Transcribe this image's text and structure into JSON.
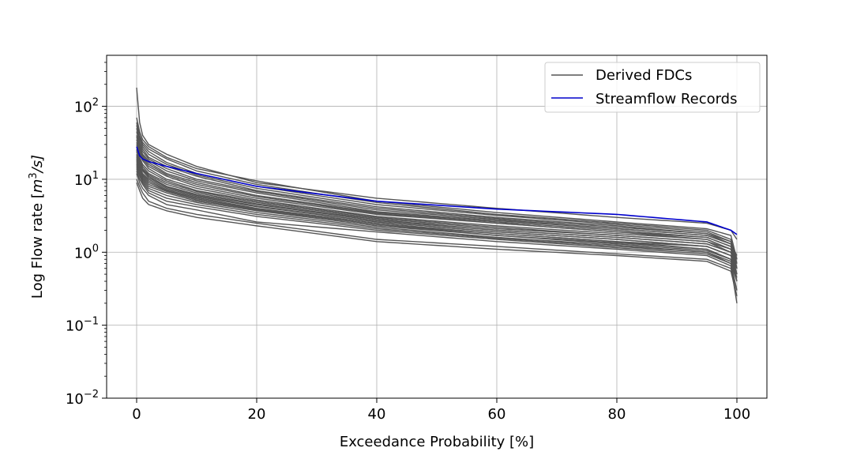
{
  "chart_data": {
    "type": "line",
    "title": "",
    "xlabel": "Exceedance Probability [%]",
    "ylabel_prefix": "Log Flow rate [",
    "ylabel_unit_base": "m",
    "ylabel_unit_exp": "3",
    "ylabel_unit_rest": "/s]",
    "xlim": [
      -5,
      105
    ],
    "ylim": [
      0.01,
      500
    ],
    "y_scale": "log",
    "grid": true,
    "legend_position": "top-right",
    "x_ticks": [
      {
        "value": 0,
        "label": "0"
      },
      {
        "value": 20,
        "label": "20"
      },
      {
        "value": 40,
        "label": "40"
      },
      {
        "value": 60,
        "label": "60"
      },
      {
        "value": 80,
        "label": "80"
      },
      {
        "value": 100,
        "label": "100"
      }
    ],
    "y_ticks": [
      {
        "value": 0.01,
        "base": "10",
        "exp": "−2"
      },
      {
        "value": 0.1,
        "base": "10",
        "exp": "−1"
      },
      {
        "value": 1,
        "base": "10",
        "exp": "0"
      },
      {
        "value": 10,
        "base": "10",
        "exp": "1"
      },
      {
        "value": 100,
        "base": "10",
        "exp": "2"
      }
    ],
    "x": [
      0,
      0.5,
      1,
      2,
      5,
      10,
      20,
      40,
      60,
      80,
      95,
      99,
      100
    ],
    "series": [
      {
        "name": "Derived FDCs",
        "color": "#555555",
        "curves": [
          [
            180,
            60,
            40,
            30,
            22,
            15,
            9.0,
            5.5,
            4.0,
            3.0,
            2.5,
            2.0,
            1.5
          ],
          [
            70,
            45,
            35,
            28,
            20,
            14,
            9.5,
            5.0,
            3.5,
            2.6,
            2.1,
            1.7,
            0.8
          ],
          [
            60,
            40,
            32,
            26,
            19,
            13,
            8.5,
            4.8,
            3.3,
            2.5,
            2.0,
            1.5,
            0.7
          ],
          [
            55,
            38,
            30,
            24,
            17,
            12,
            8.0,
            4.5,
            3.2,
            2.4,
            1.9,
            1.4,
            0.6
          ],
          [
            50,
            35,
            28,
            22,
            16,
            11.5,
            7.5,
            4.2,
            3.0,
            2.3,
            1.8,
            1.3,
            0.6
          ],
          [
            45,
            32,
            26,
            20,
            15,
            11,
            7.0,
            4.0,
            2.9,
            2.2,
            1.8,
            1.4,
            0.8
          ],
          [
            40,
            30,
            24,
            19,
            14,
            10,
            6.8,
            3.8,
            2.8,
            2.1,
            1.7,
            1.3,
            0.7
          ],
          [
            38,
            28,
            22,
            18,
            13,
            9.5,
            6.5,
            3.6,
            2.7,
            2.1,
            1.7,
            1.3,
            0.9
          ],
          [
            35,
            26,
            21,
            17,
            12,
            9.0,
            6.0,
            3.5,
            2.6,
            2.0,
            1.6,
            1.2,
            0.6
          ],
          [
            32,
            24,
            20,
            16,
            11.5,
            8.5,
            5.8,
            3.4,
            2.5,
            1.9,
            1.6,
            1.2,
            0.7
          ],
          [
            30,
            23,
            19,
            15,
            11,
            8.0,
            5.5,
            3.3,
            2.5,
            1.9,
            1.5,
            1.1,
            0.5
          ],
          [
            28,
            22,
            18,
            14,
            10,
            7.5,
            5.2,
            3.1,
            2.3,
            1.8,
            1.5,
            1.1,
            0.6
          ],
          [
            26,
            20,
            16,
            13,
            9.5,
            7.0,
            5.0,
            3.0,
            2.2,
            1.7,
            1.4,
            1.0,
            0.5
          ],
          [
            25,
            19,
            15,
            12,
            9.0,
            6.8,
            4.8,
            2.9,
            2.1,
            1.7,
            1.4,
            1.1,
            0.8
          ],
          [
            24,
            18,
            14,
            11.5,
            8.5,
            6.5,
            4.6,
            2.8,
            2.0,
            1.6,
            1.3,
            1.0,
            0.6
          ],
          [
            22,
            17,
            13.5,
            11,
            8.0,
            6.2,
            4.5,
            2.7,
            2.0,
            1.6,
            1.3,
            1.0,
            0.7
          ],
          [
            21,
            16,
            13,
            10.5,
            7.8,
            6.0,
            4.3,
            2.6,
            1.9,
            1.5,
            1.2,
            0.9,
            0.5
          ],
          [
            20,
            15,
            12,
            10,
            7.5,
            5.8,
            4.2,
            2.6,
            1.9,
            1.5,
            1.2,
            0.9,
            0.4
          ],
          [
            19,
            14,
            11.5,
            9.5,
            7.2,
            5.6,
            4.0,
            2.5,
            1.8,
            1.4,
            1.2,
            0.9,
            0.6
          ],
          [
            18,
            13.5,
            11,
            9.0,
            7.0,
            5.4,
            3.9,
            2.4,
            1.8,
            1.4,
            1.1,
            0.8,
            0.5
          ],
          [
            17,
            13,
            10.5,
            8.5,
            6.8,
            5.2,
            3.8,
            2.4,
            1.7,
            1.35,
            1.1,
            0.8,
            0.4
          ],
          [
            16,
            12,
            10,
            8.0,
            6.5,
            5.0,
            3.7,
            2.3,
            1.7,
            1.3,
            1.05,
            0.8,
            0.5
          ],
          [
            15,
            11.5,
            9.5,
            7.5,
            6.0,
            4.8,
            3.5,
            2.2,
            1.6,
            1.25,
            1.0,
            0.75,
            0.45
          ],
          [
            14,
            11,
            9.0,
            7.0,
            5.5,
            4.5,
            3.3,
            2.1,
            1.55,
            1.2,
            1.0,
            0.7,
            0.3
          ],
          [
            13,
            10,
            8.5,
            6.5,
            5.0,
            4.2,
            3.1,
            2.0,
            1.5,
            1.15,
            0.95,
            0.7,
            0.4
          ],
          [
            12,
            9.0,
            7.5,
            6.0,
            4.5,
            3.8,
            2.6,
            1.9,
            1.4,
            1.1,
            0.9,
            0.65,
            0.2
          ],
          [
            10,
            8.0,
            6.5,
            5.0,
            4.0,
            3.3,
            2.5,
            1.5,
            1.2,
            0.95,
            0.8,
            0.6,
            0.3
          ],
          [
            9.0,
            7.0,
            5.5,
            4.5,
            3.7,
            3.0,
            2.3,
            1.4,
            1.1,
            0.9,
            0.75,
            0.55,
            0.25
          ]
        ]
      },
      {
        "name": "Streamflow Records",
        "color": "#0000cc",
        "curves": [
          [
            28,
            21,
            19,
            17.5,
            15,
            12,
            8.0,
            5.0,
            3.9,
            3.3,
            2.6,
            2.0,
            1.75
          ]
        ]
      }
    ],
    "legend": [
      {
        "label": "Derived FDCs",
        "color": "#555555"
      },
      {
        "label": "Streamflow Records",
        "color": "#0000cc"
      }
    ]
  }
}
